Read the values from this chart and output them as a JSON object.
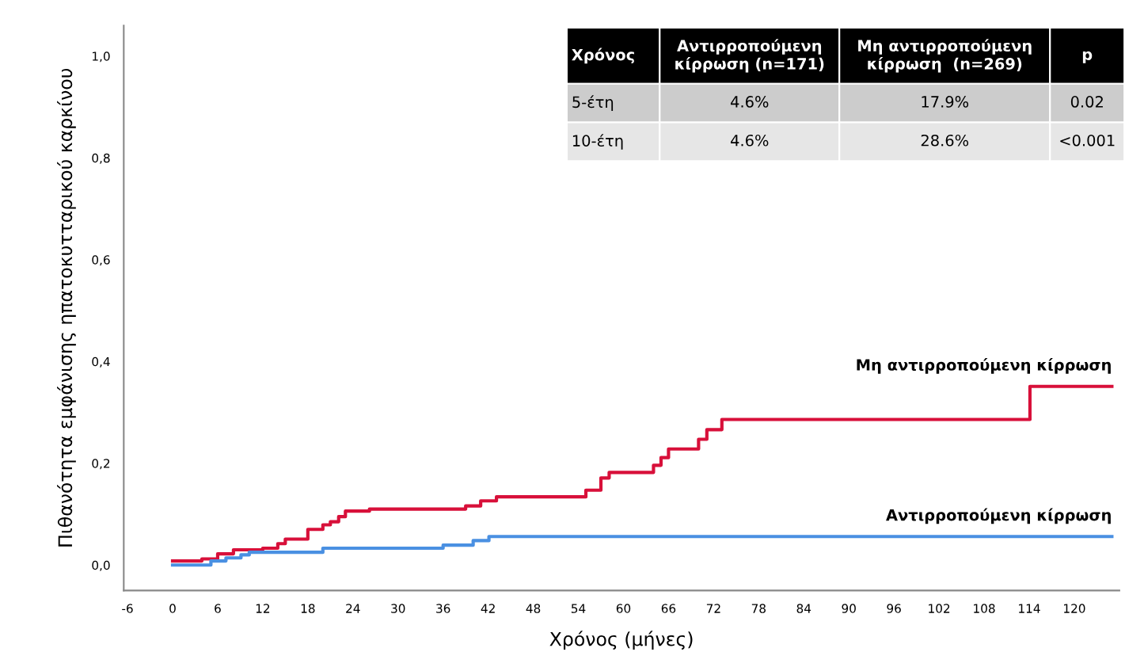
{
  "chart_data": {
    "type": "step",
    "xlabel": "Χρόνος (μήνες)",
    "ylabel": "Πιθανότητα εμφάνισης ηπατοκυτταρικού καρκίνου",
    "xlim": [
      -6.5,
      126
    ],
    "xticks": [
      -6,
      0,
      6,
      12,
      18,
      24,
      30,
      36,
      42,
      48,
      54,
      60,
      66,
      72,
      78,
      84,
      90,
      96,
      102,
      108,
      114,
      120
    ],
    "ylim": [
      -0.05,
      1.06
    ],
    "yticks": [
      {
        "value": 0,
        "label": "0,0"
      },
      {
        "value": 0.2,
        "label": "0,2"
      },
      {
        "value": 0.4,
        "label": "0,4"
      },
      {
        "value": 0.6,
        "label": "0,6"
      },
      {
        "value": 0.8,
        "label": "0,8"
      },
      {
        "value": 1.0,
        "label": "1,0"
      }
    ],
    "grid": false,
    "legend": false,
    "line_style": "solid",
    "marker": "none",
    "series": [
      {
        "name": "Μη αντιρροπούμενη κίρρωση",
        "color": "#d8103a",
        "x": [
          0,
          3.9,
          6,
          8.1,
          12,
          14,
          15,
          18,
          20,
          21,
          22.1,
          23,
          26.2,
          39,
          41,
          43.1,
          55,
          57,
          58.1,
          64,
          65,
          66,
          70,
          71.1,
          73.1,
          114.1,
          125
        ],
        "values": [
          0.008,
          0.012,
          0.022,
          0.03,
          0.033,
          0.042,
          0.051,
          0.07,
          0.079,
          0.085,
          0.095,
          0.106,
          0.11,
          0.116,
          0.126,
          0.134,
          0.147,
          0.171,
          0.182,
          0.196,
          0.211,
          0.228,
          0.247,
          0.266,
          0.286,
          0.351,
          0.351
        ]
      },
      {
        "name": "Αντιρροπούμενη κίρρωση",
        "color": "#4a90e2",
        "x": [
          0,
          5.1,
          7.1,
          9.1,
          10.2,
          20,
          36,
          40,
          42.1,
          125
        ],
        "values": [
          0.0,
          0.008,
          0.014,
          0.02,
          0.025,
          0.033,
          0.039,
          0.048,
          0.056,
          0.056
        ]
      }
    ],
    "annotations": [
      "Χρόνος",
      "Αντιρροπούμενη\nκίρρωση (n=171)",
      "Μη αντιρροπούμενη\nκίρρωση  (n=269)",
      "p",
      "5-έτη",
      "4.6%",
      "17.9%",
      "0.02",
      "10-έτη",
      "4.6%",
      "28.6%",
      "<0.001"
    ]
  }
}
